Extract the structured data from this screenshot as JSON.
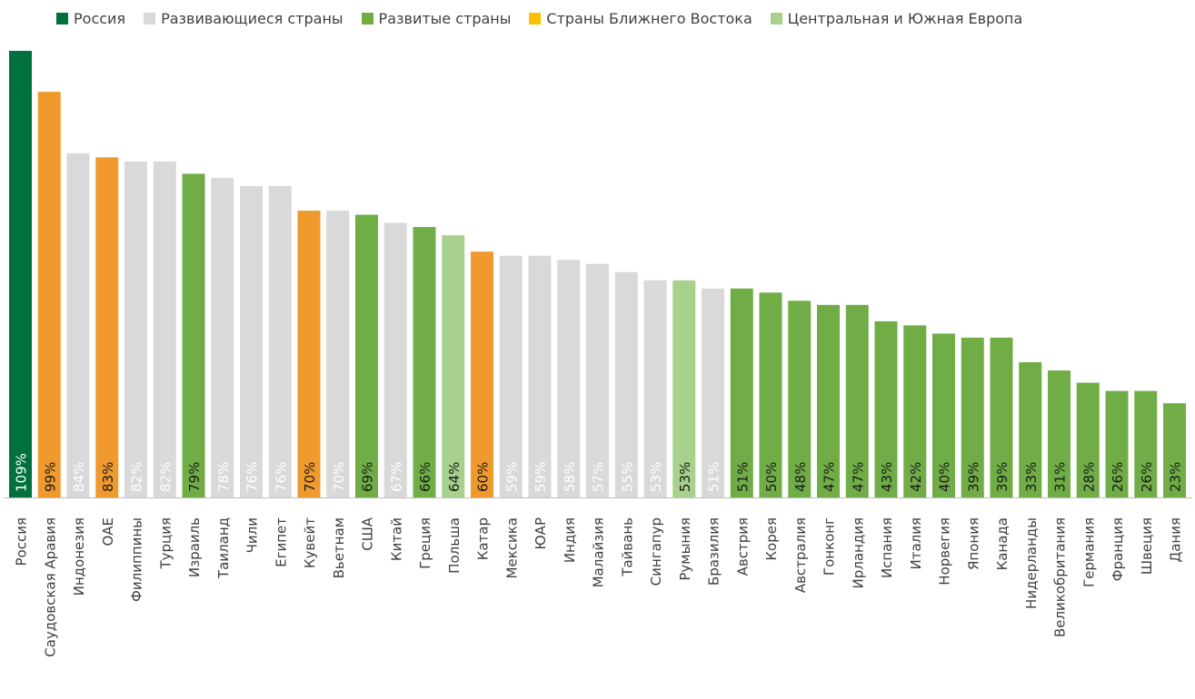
{
  "legend": [
    {
      "label": "Россия",
      "color": "#00703C"
    },
    {
      "label": "Развивающиеся страны",
      "color": "#D9D9D9"
    },
    {
      "label": "Развитые страны",
      "color": "#70AD47"
    },
    {
      "label": "Страны Ближнего Востока",
      "color": "#FFC000"
    },
    {
      "label": "Центральная и Южная Европа",
      "color": "#A9D18E"
    }
  ],
  "chart_data": {
    "type": "bar",
    "title": "",
    "xlabel": "",
    "ylabel": "",
    "ylim": [
      0,
      110
    ],
    "grid": false,
    "legend_position": "top",
    "groups": {
      "russia": "#00703C",
      "emerging": "#D9D9D9",
      "developed": "#70AD47",
      "middle_east": "#F09A2E",
      "cse": "#A9D18E"
    },
    "categories": [
      "Россия",
      "Саудовская Аравия",
      "Индонезия",
      "ОАЕ",
      "Филиппины",
      "Турция",
      "Израиль",
      "Таиланд",
      "Чили",
      "Египет",
      "Кувейт",
      "Вьетнам",
      "США",
      "Китай",
      "Греция",
      "Польша",
      "Катар",
      "Мексика",
      "ЮАР",
      "Индия",
      "Малайзия",
      "Тайвань",
      "Сингапур",
      "Румыния",
      "Бразилия",
      "Австрия",
      "Корея",
      "Австралия",
      "Гонконг",
      "Ирландия",
      "Испания",
      "Италия",
      "Норвегия",
      "Япония",
      "Канада",
      "Нидерланды",
      "Великобритания",
      "Германия",
      "Франция",
      "Швеция",
      "Дания"
    ],
    "values": [
      109,
      99,
      84,
      83,
      82,
      82,
      79,
      78,
      76,
      76,
      70,
      70,
      69,
      67,
      66,
      64,
      60,
      59,
      59,
      58,
      57,
      55,
      53,
      53,
      51,
      51,
      50,
      48,
      47,
      47,
      43,
      42,
      40,
      39,
      39,
      33,
      31,
      28,
      26,
      26,
      23
    ],
    "labels": [
      "109%",
      "99%",
      "84%",
      "83%",
      "82%",
      "82%",
      "79%",
      "78%",
      "76%",
      "76%",
      "70%",
      "70%",
      "69%",
      "67%",
      "66%",
      "64%",
      "60%",
      "59%",
      "59%",
      "58%",
      "57%",
      "55%",
      "53%",
      "53%",
      "51%",
      "51%",
      "50%",
      "48%",
      "47%",
      "47%",
      "43%",
      "42%",
      "40%",
      "39%",
      "39%",
      "33%",
      "31%",
      "28%",
      "26%",
      "26%",
      "23%"
    ],
    "bar_groups": [
      "russia",
      "middle_east",
      "emerging",
      "middle_east",
      "emerging",
      "emerging",
      "developed",
      "emerging",
      "emerging",
      "emerging",
      "middle_east",
      "emerging",
      "developed",
      "emerging",
      "developed",
      "cse",
      "middle_east",
      "emerging",
      "emerging",
      "emerging",
      "emerging",
      "emerging",
      "emerging",
      "cse",
      "emerging",
      "developed",
      "developed",
      "developed",
      "developed",
      "developed",
      "developed",
      "developed",
      "developed",
      "developed",
      "developed",
      "developed",
      "developed",
      "developed",
      "developed",
      "developed",
      "developed"
    ]
  }
}
